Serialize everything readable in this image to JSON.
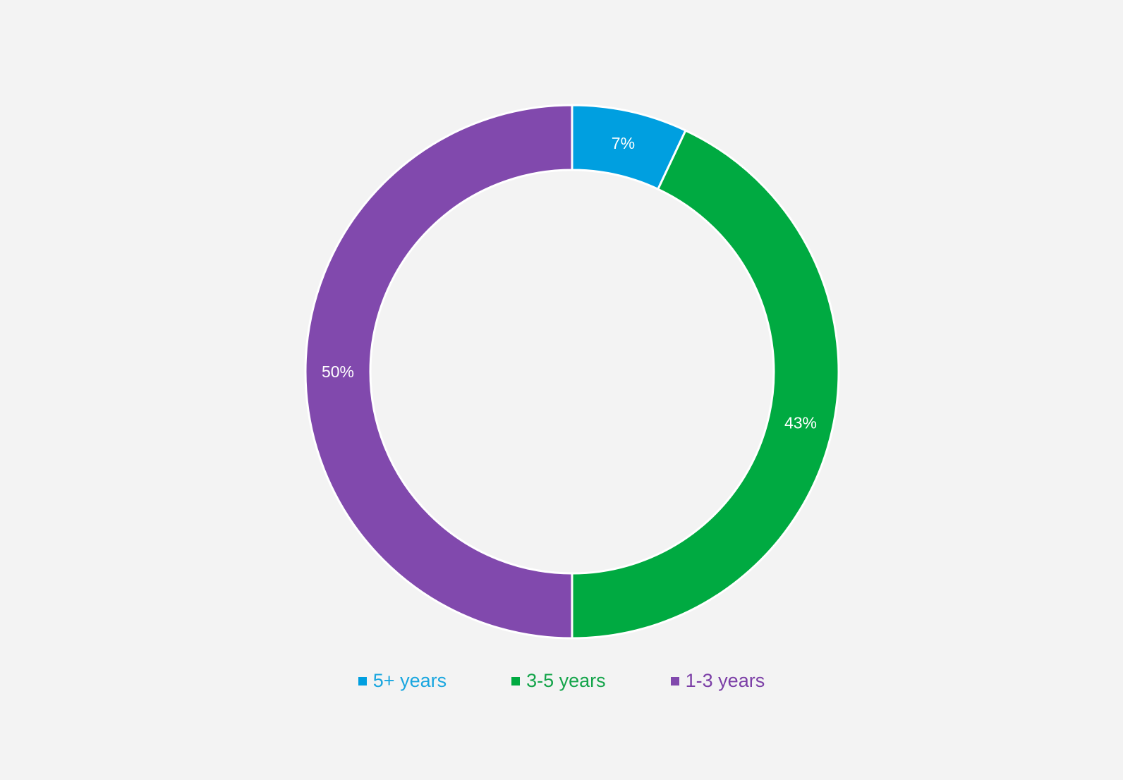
{
  "chart_data": {
    "type": "pie",
    "donut": true,
    "title": "",
    "categories": [
      "5+ years",
      "3-5 years",
      "1-3 years"
    ],
    "values": [
      7,
      43,
      50
    ],
    "labels": [
      "7%",
      "43%",
      "50%"
    ],
    "colors": [
      "#009fe0",
      "#00aa41",
      "#8149ad"
    ],
    "legend_position": "bottom"
  },
  "legend": {
    "items": [
      {
        "label": "5+ years",
        "color": "#009fe0",
        "text_color": "#19a6df"
      },
      {
        "label": "3-5 years",
        "color": "#00aa41",
        "text_color": "#14a44a"
      },
      {
        "label": "1-3 years",
        "color": "#8149ad",
        "text_color": "#7b3ea6"
      }
    ]
  }
}
